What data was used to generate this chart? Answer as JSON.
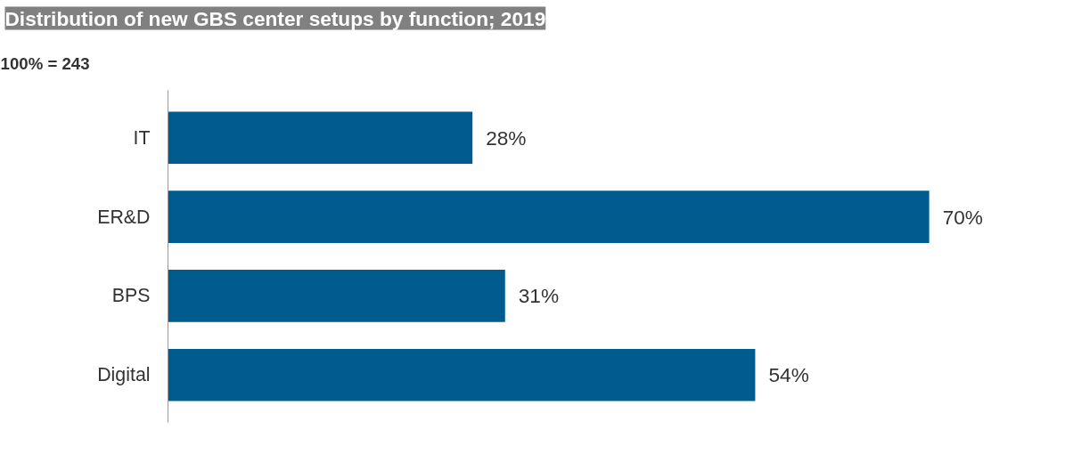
{
  "chart_data": {
    "type": "bar",
    "orientation": "horizontal",
    "title": "Distribution of new GBS center setups by function; 2019",
    "subtitle": "100% = 243",
    "categories": [
      "IT",
      "ER&D",
      "BPS",
      "Digital"
    ],
    "values": [
      28,
      70,
      31,
      54
    ],
    "color": "#005b8f",
    "value_labels": [
      "28%",
      "70%",
      "31%",
      "54%"
    ],
    "grid": false
  }
}
